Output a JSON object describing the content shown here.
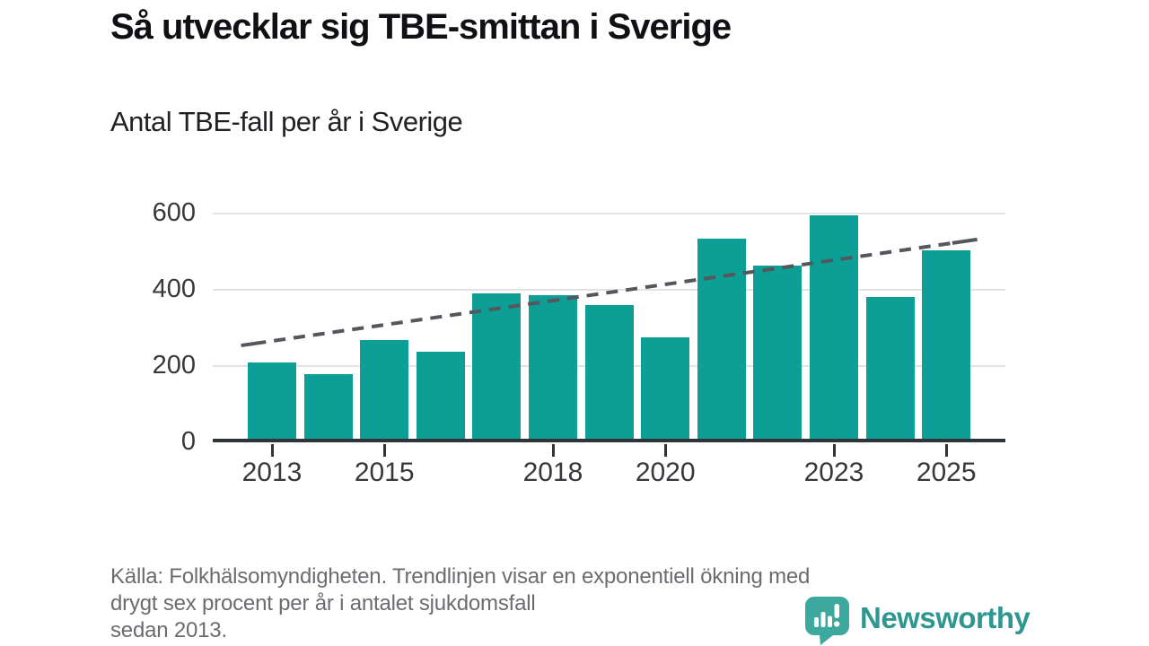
{
  "title": "Så utvecklar sig TBE-smittan i Sverige",
  "subtitle": "Antal TBE-fall per år i Sverige",
  "footer": {
    "lines": [
      "Källa: Folkhälsomyndigheten. Trendlinjen visar en exponentiell ökning med",
      "drygt sex procent per år i antalet sjukdomsfall",
      "sedan 2013."
    ]
  },
  "logo": {
    "text": "Newsworthy",
    "icon": "newsworthy-speech-bubble-bar-chart-icon"
  },
  "colors": {
    "bar": "#0d9e96",
    "trend": "#54575b",
    "grid": "#e3e3e3",
    "axis": "#303439",
    "tick_text": "#36383c",
    "title_text": "#101114",
    "footer_text": "#6a6c70",
    "logo_text": "#2e978f",
    "logo_bubble": "#3ca89e"
  },
  "chart_data": {
    "type": "bar",
    "title": "Antal TBE-fall per år i Sverige",
    "xlabel": "",
    "ylabel": "",
    "categories": [
      2013,
      2014,
      2015,
      2016,
      2017,
      2018,
      2019,
      2020,
      2021,
      2022,
      2023,
      2024,
      2025
    ],
    "values": [
      209,
      178,
      268,
      238,
      391,
      385,
      359,
      275,
      533,
      464,
      595,
      381,
      504
    ],
    "series_name": "Antal TBE-fall per år",
    "yticks": [
      0,
      200,
      400,
      600
    ],
    "ylim": [
      0,
      619
    ],
    "xtick_years": [
      2013,
      2015,
      2018,
      2020,
      2023,
      2025
    ],
    "xtick_labels": [
      "2013",
      "2015",
      "2018",
      "2020",
      "2023",
      "2025"
    ],
    "grid": "horizontal-only",
    "legend": "none",
    "trend": {
      "style": "dashed",
      "description": "exponentiell ökning, drygt 6 % per år sedan 2013",
      "start": {
        "year": 2012.45,
        "value": 254
      },
      "end": {
        "year": 2025.55,
        "value": 532
      }
    }
  }
}
